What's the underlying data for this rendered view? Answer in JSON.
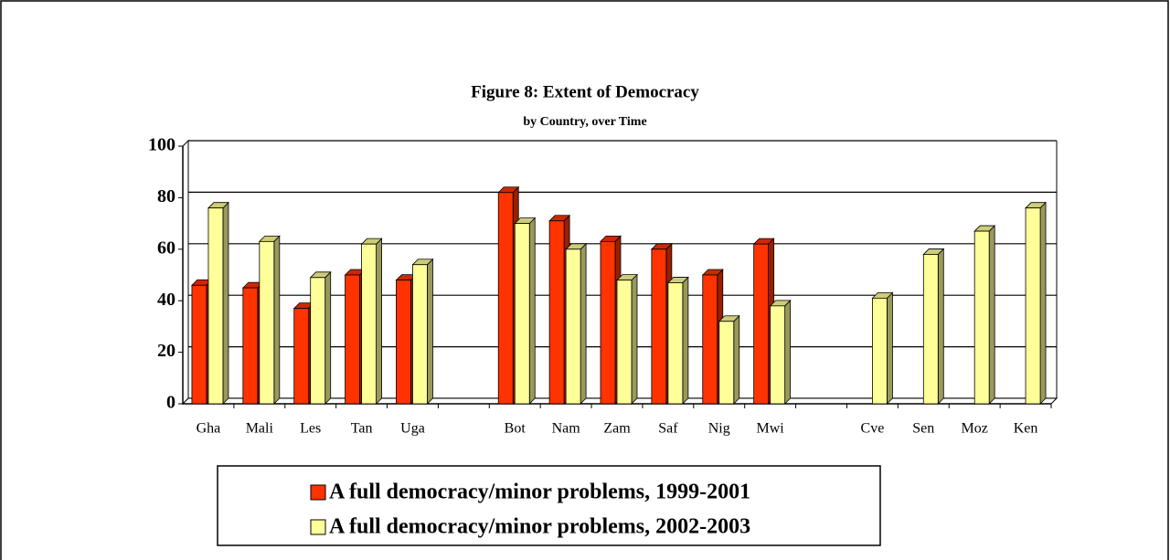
{
  "chart_data": {
    "type": "bar",
    "title": "Figure 8:  Extent of Democracy",
    "subtitle": "by Country, over Time",
    "categories": [
      "Gha",
      "Mali",
      "Les",
      "Tan",
      "Uga",
      null,
      "Bot",
      "Nam",
      "Zam",
      "Saf",
      "Nig",
      "Mwi",
      null,
      "Cve",
      "Sen",
      "Moz",
      "Ken"
    ],
    "series": [
      {
        "name": "A full democracy/minor problems, 1999-2001",
        "color": "#ff3300",
        "values": [
          46,
          45,
          37,
          50,
          48,
          null,
          82,
          71,
          63,
          60,
          50,
          62,
          null,
          null,
          null,
          null,
          null
        ]
      },
      {
        "name": "A full democracy/minor problems, 2002-2003",
        "color": "#ffff99",
        "values": [
          76,
          63,
          49,
          62,
          54,
          null,
          70,
          60,
          48,
          47,
          32,
          38,
          null,
          41,
          58,
          67,
          76
        ]
      }
    ],
    "ylim": [
      0,
      100
    ],
    "yticks": [
      0,
      20,
      40,
      60,
      80,
      100
    ],
    "grid": true
  }
}
